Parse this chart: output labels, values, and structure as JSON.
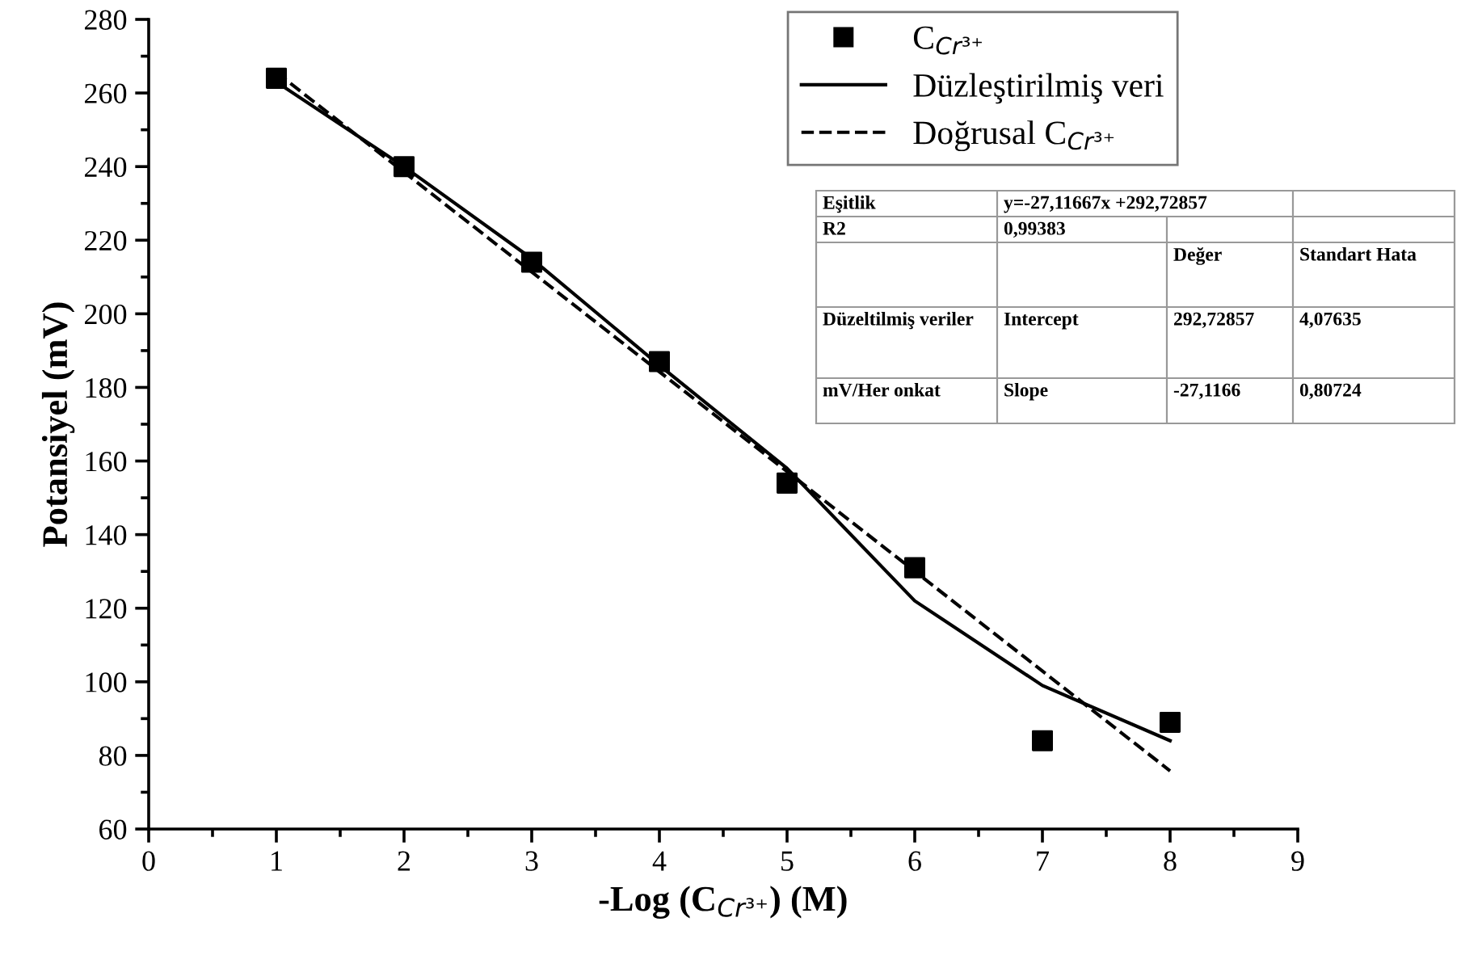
{
  "chart_data": {
    "type": "scatter",
    "xlabel": "-Log (C$_{Cr³⁺}$) (M)",
    "ylabel": "Potansiyel (mV)",
    "x": [
      1,
      2,
      3,
      4,
      5,
      6,
      7,
      8
    ],
    "series": [
      {
        "name": "C$_{Cr³⁺}$",
        "color": "#000000",
        "marker": "square",
        "values": [
          264,
          240,
          214,
          187,
          154,
          131,
          84,
          89
        ]
      },
      {
        "name": "Düzleştirilmiş veri",
        "type": "line",
        "color": "#000000",
        "line_style": "solid",
        "marker": "none",
        "values": [
          263,
          240,
          215,
          186,
          158,
          122,
          99,
          84
        ]
      },
      {
        "name": "Doğrusal C$_{Cr³⁺}$",
        "type": "line",
        "color": "#000000",
        "line_style": "dashed",
        "marker": "none",
        "x": [
          1,
          8
        ],
        "values": [
          265.6,
          75.8
        ]
      }
    ],
    "xlim": [
      0,
      9
    ],
    "ylim": [
      60,
      280
    ],
    "xticks": [
      0,
      1,
      2,
      3,
      4,
      5,
      6,
      7,
      8,
      9
    ],
    "yticks": [
      60,
      80,
      100,
      120,
      140,
      160,
      180,
      200,
      220,
      240,
      260,
      280
    ],
    "grid": false,
    "legend": "top right",
    "annotations": [
      "Eşitlik",
      "y=-27,11667x +292,72857",
      "R2",
      "0,99383",
      "Değer",
      "Standart Hata",
      "Düzeltilmiş veriler",
      "Intercept",
      "292,72857",
      "4,07635",
      "mV/Her onkat",
      "Slope",
      "-27,1166",
      "0,80724"
    ]
  }
}
